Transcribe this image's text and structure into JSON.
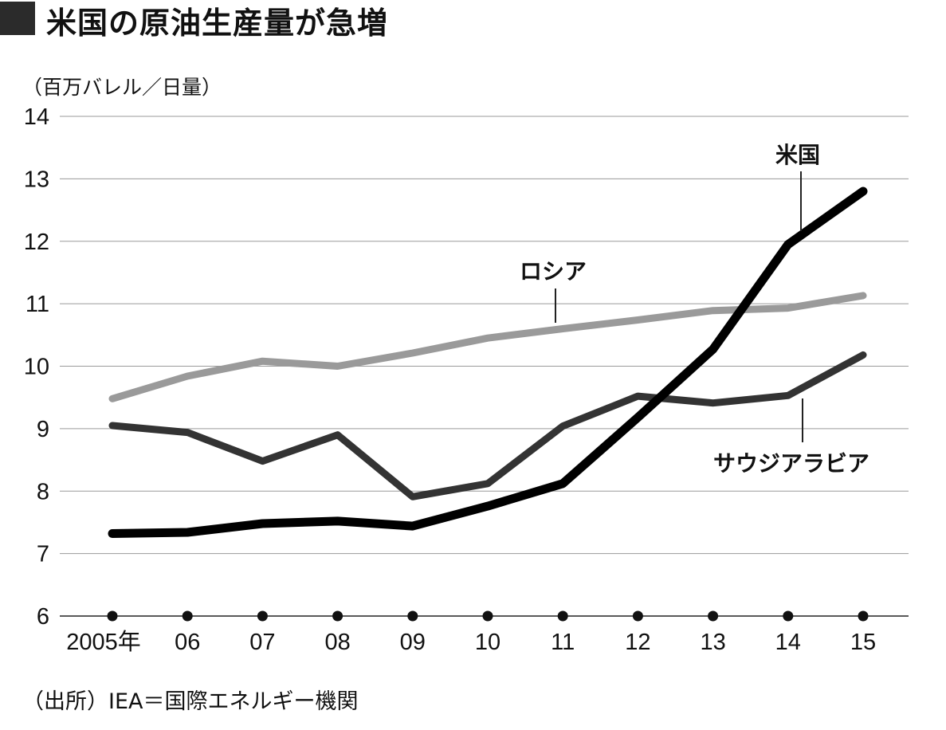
{
  "header": {
    "title": "米国の原油生産量が急増",
    "unit": "（百万バレル／日量）"
  },
  "footer": {
    "source": "（出所）IEA＝国際エネルギー機関"
  },
  "chart_data": {
    "type": "line",
    "title": "米国の原油生産量が急増",
    "ylabel": "（百万バレル／日量）",
    "xlabel": "",
    "ylim": [
      6,
      14
    ],
    "yticks": [
      "14",
      "13",
      "12",
      "11",
      "10",
      "9",
      "8",
      "7",
      "6"
    ],
    "categories": [
      "2005年",
      "06",
      "07",
      "08",
      "09",
      "10",
      "11",
      "12",
      "13",
      "14",
      "15"
    ],
    "grid": true,
    "series": [
      {
        "name": "ロシア",
        "color": "#9a9a9a",
        "values": [
          9.48,
          9.84,
          10.08,
          10.0,
          10.21,
          10.45,
          10.6,
          10.74,
          10.89,
          10.93,
          11.13
        ]
      },
      {
        "name": "サウジアラビア",
        "color": "#333333",
        "values": [
          9.05,
          8.94,
          8.48,
          8.9,
          7.91,
          8.12,
          9.04,
          9.52,
          9.41,
          9.53,
          10.18
        ]
      },
      {
        "name": "米国",
        "color": "#000000",
        "values": [
          7.32,
          7.34,
          7.48,
          7.52,
          7.44,
          7.76,
          8.12,
          9.18,
          10.27,
          11.95,
          12.8
        ]
      }
    ]
  }
}
